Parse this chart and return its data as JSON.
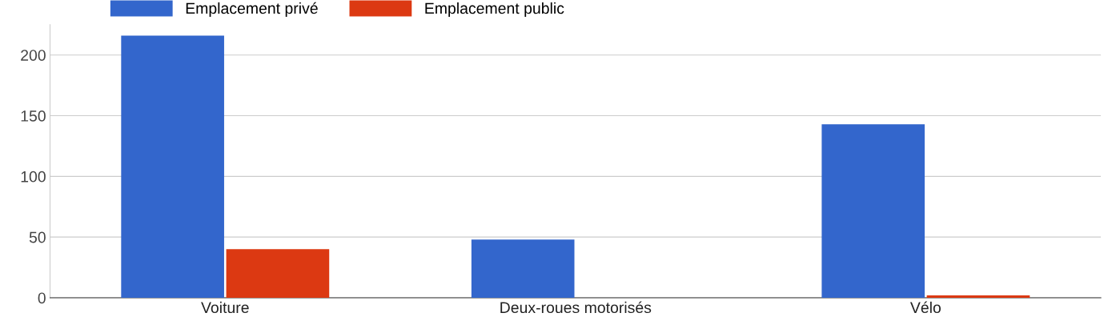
{
  "chart_data": {
    "type": "bar",
    "categories": [
      "Voiture",
      "Deux-roues motorisés",
      "Vélo"
    ],
    "series": [
      {
        "name": "Emplacement privé",
        "color": "#3366cc",
        "values": [
          216,
          48,
          143
        ]
      },
      {
        "name": "Emplacement public",
        "color": "#dc3912",
        "values": [
          40,
          0,
          2
        ]
      }
    ],
    "ylim": [
      0,
      225
    ],
    "yticks": [
      0,
      50,
      100,
      150,
      200
    ],
    "grid": "y",
    "legend": "top left"
  }
}
